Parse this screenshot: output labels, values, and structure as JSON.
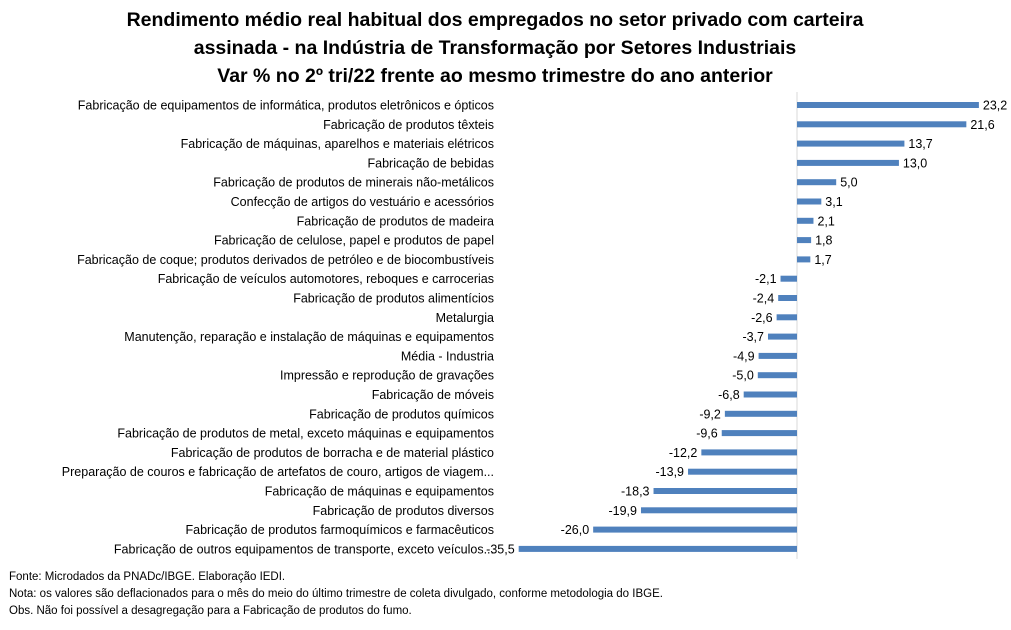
{
  "chart_data": {
    "type": "bar",
    "orientation": "horizontal",
    "title_lines": [
      "Rendimento médio real habitual dos empregados no setor privado com carteira",
      "assinada - na Indústria de Transformação por Setores Industriais",
      "Var % no 2º tri/22 frente ao mesmo trimestre do ano anterior"
    ],
    "categories": [
      "Fabricação de equipamentos de informática, produtos eletrônicos e ópticos",
      "Fabricação de produtos têxteis",
      "Fabricação de máquinas, aparelhos e materiais elétricos",
      "Fabricação de bebidas",
      "Fabricação de produtos de minerais não-metálicos",
      "Confecção de artigos do vestuário e acessórios",
      "Fabricação de produtos de madeira",
      "Fabricação de celulose, papel e produtos de papel",
      "Fabricação de coque; produtos derivados de petróleo e de biocombustíveis",
      "Fabricação de veículos automotores, reboques e carrocerias",
      "Fabricação de produtos alimentícios",
      "Metalurgia",
      "Manutenção, reparação e instalação de máquinas e equipamentos",
      "Média - Industria",
      "Impressão e reprodução de gravações",
      "Fabricação de móveis",
      "Fabricação de produtos químicos",
      "Fabricação de produtos de metal, exceto máquinas e equipamentos",
      "Fabricação de produtos de borracha e de material plástico",
      "Preparação de couros e fabricação de artefatos de couro, artigos de viagem...",
      "Fabricação de máquinas e equipamentos",
      "Fabricação de produtos diversos",
      "Fabricação de produtos farmoquímicos e farmacêuticos",
      "Fabricação de outros equipamentos de transporte, exceto veículos..."
    ],
    "values": [
      23.2,
      21.6,
      13.7,
      13.0,
      5.0,
      3.1,
      2.1,
      1.8,
      1.7,
      -2.1,
      -2.4,
      -2.6,
      -3.7,
      -4.9,
      -5.0,
      -6.8,
      -9.2,
      -9.6,
      -12.2,
      -13.9,
      -18.3,
      -19.9,
      -26.0,
      -35.5
    ],
    "value_labels": [
      "23,2",
      "21,6",
      "13,7",
      "13,0",
      "5,0",
      "3,1",
      "2,1",
      "1,8",
      "1,7",
      "-2,1",
      "-2,4",
      "-2,6",
      "-3,7",
      "-4,9",
      "-5,0",
      "-6,8",
      "-9,2",
      "-9,6",
      "-12,2",
      "-13,9",
      "-18,3",
      "-19,9",
      "-26,0",
      "-35,5"
    ],
    "xlim": [
      -35.5,
      23.2
    ],
    "grid": false,
    "legend": "none",
    "bar_color": "#4f81bd"
  },
  "notes": [
    "Fonte: Microdados da PNADc/IBGE. Elaboração IEDI.",
    "Nota: os valores são deflacionados para o mês do meio do último trimestre de coleta divulgado, conforme metodologia do IBGE.",
    "Obs. Não foi possível a desagregação para a  Fabricação de produtos do fumo."
  ]
}
